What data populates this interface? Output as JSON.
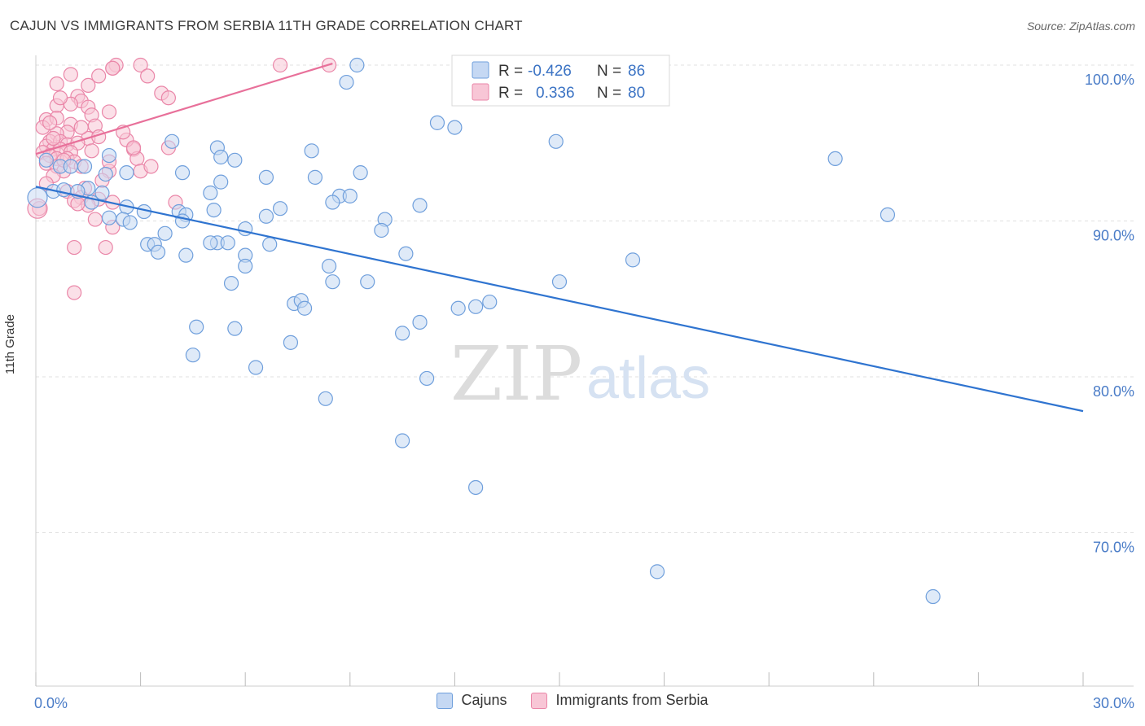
{
  "title": "CAJUN VS IMMIGRANTS FROM SERBIA 11TH GRADE CORRELATION CHART",
  "source": "Source: ZipAtlas.com",
  "watermark": {
    "zip": "ZIP",
    "atlas": "atlas"
  },
  "colors": {
    "blue_fill": "#c5d8f3",
    "blue_stroke": "#6f9fdc",
    "blue_line": "#2f74d0",
    "pink_fill": "#f8c6d6",
    "pink_stroke": "#ea86a8",
    "pink_line": "#e8709a",
    "grid": "#e0e0e0",
    "axis_label": "#4a7cc7"
  },
  "legend": {
    "rows": [
      {
        "r_label": "R = ",
        "r_value": "-0.426",
        "n_label": "N = ",
        "n_value": "86"
      },
      {
        "r_label": "R = ",
        "r_value": "0.336",
        "n_label": "N = ",
        "n_value": "80"
      }
    ]
  },
  "chart_data": {
    "type": "scatter",
    "title": "CAJUN VS IMMIGRANTS FROM SERBIA 11TH GRADE CORRELATION CHART",
    "xlabel": "",
    "ylabel": "11th Grade",
    "xlim": [
      0,
      30
    ],
    "ylim": [
      60,
      101.5
    ],
    "x_tick_labels": [
      {
        "value": 0,
        "label": "0.0%"
      },
      {
        "value": 30,
        "label": "30.0%"
      }
    ],
    "y_ticks": [
      {
        "value": 100,
        "label": "100.0%"
      },
      {
        "value": 90,
        "label": "90.0%"
      },
      {
        "value": 80,
        "label": "80.0%"
      },
      {
        "value": 70,
        "label": "70.0%"
      }
    ],
    "grid": "horizontal dashed",
    "legend_position": "top-center",
    "series": [
      {
        "name": "Cajuns",
        "color": "#6f9fdc",
        "r": -0.426,
        "n": 86,
        "trend": {
          "x": [
            0,
            30
          ],
          "y": [
            92.2,
            77.8
          ]
        },
        "points": [
          [
            9.2,
            100
          ],
          [
            8.9,
            98.9
          ],
          [
            11.5,
            96.3
          ],
          [
            12.0,
            96
          ],
          [
            14.9,
            95.1
          ],
          [
            3.9,
            95.1
          ],
          [
            7.9,
            94.5
          ],
          [
            5.2,
            94.7
          ],
          [
            2.1,
            94.2
          ],
          [
            22.9,
            94
          ],
          [
            5.3,
            94.1
          ],
          [
            5.7,
            93.9
          ],
          [
            1.4,
            93.5
          ],
          [
            0.7,
            93.5
          ],
          [
            2.0,
            93.0
          ],
          [
            4.2,
            93.1
          ],
          [
            9.3,
            93.1
          ],
          [
            8.0,
            92.8
          ],
          [
            6.6,
            92.8
          ],
          [
            2.6,
            93.1
          ],
          [
            5.3,
            92.5
          ],
          [
            1.5,
            92.1
          ],
          [
            0.5,
            91.9
          ],
          [
            1.2,
            91.9
          ],
          [
            5.0,
            91.8
          ],
          [
            8.7,
            91.6
          ],
          [
            9.0,
            91.6
          ],
          [
            8.5,
            91.2
          ],
          [
            1.6,
            91.2
          ],
          [
            2.6,
            90.9
          ],
          [
            11.0,
            91.0
          ],
          [
            3.1,
            90.6
          ],
          [
            4.1,
            90.6
          ],
          [
            4.3,
            90.4
          ],
          [
            5.1,
            90.7
          ],
          [
            6.6,
            90.3
          ],
          [
            2.1,
            90.2
          ],
          [
            10.0,
            90.1
          ],
          [
            24.4,
            90.4
          ],
          [
            4.2,
            90.0
          ],
          [
            9.9,
            89.4
          ],
          [
            2.5,
            90.1
          ],
          [
            2.7,
            89.9
          ],
          [
            6.0,
            89.5
          ],
          [
            5.2,
            88.6
          ],
          [
            5.5,
            88.6
          ],
          [
            5.0,
            88.6
          ],
          [
            3.2,
            88.5
          ],
          [
            3.4,
            88.5
          ],
          [
            6.7,
            88.5
          ],
          [
            10.6,
            87.9
          ],
          [
            4.3,
            87.8
          ],
          [
            6.0,
            87.8
          ],
          [
            3.5,
            88.0
          ],
          [
            17.1,
            87.5
          ],
          [
            6.0,
            87.1
          ],
          [
            8.4,
            87.1
          ],
          [
            5.6,
            86.0
          ],
          [
            8.5,
            86.1
          ],
          [
            9.5,
            86.1
          ],
          [
            15.0,
            86.1
          ],
          [
            7.4,
            84.7
          ],
          [
            7.6,
            84.9
          ],
          [
            7.7,
            84.4
          ],
          [
            12.1,
            84.4
          ],
          [
            12.6,
            84.5
          ],
          [
            13.0,
            84.8
          ],
          [
            11.0,
            83.5
          ],
          [
            4.6,
            83.2
          ],
          [
            5.7,
            83.1
          ],
          [
            10.5,
            82.8
          ],
          [
            7.3,
            82.2
          ],
          [
            4.5,
            81.4
          ],
          [
            6.3,
            80.6
          ],
          [
            11.2,
            79.9
          ],
          [
            8.3,
            78.6
          ],
          [
            10.5,
            75.9
          ],
          [
            12.6,
            72.9
          ],
          [
            17.8,
            67.5
          ],
          [
            25.7,
            65.9
          ],
          [
            1.0,
            93.5
          ],
          [
            0.3,
            93.9
          ],
          [
            0.8,
            92.0
          ],
          [
            1.9,
            91.8
          ],
          [
            3.7,
            89.2
          ],
          [
            7.0,
            90.8
          ]
        ]
      },
      {
        "name": "Immigrants from Serbia",
        "color": "#ea86a8",
        "r": 0.336,
        "n": 80,
        "trend": {
          "x": [
            0,
            8.5
          ],
          "y": [
            94.3,
            100.1
          ]
        },
        "points": [
          [
            7.0,
            100
          ],
          [
            8.4,
            100
          ],
          [
            2.3,
            100
          ],
          [
            2.2,
            99.8
          ],
          [
            3.0,
            100
          ],
          [
            2.2,
            99.8
          ],
          [
            1.0,
            99.4
          ],
          [
            1.8,
            99.3
          ],
          [
            3.2,
            99.3
          ],
          [
            0.6,
            98.8
          ],
          [
            1.5,
            98.7
          ],
          [
            1.2,
            98.0
          ],
          [
            3.6,
            98.2
          ],
          [
            3.8,
            97.9
          ],
          [
            1.3,
            97.7
          ],
          [
            1.0,
            97.5
          ],
          [
            1.5,
            97.3
          ],
          [
            0.6,
            97.4
          ],
          [
            2.1,
            97.0
          ],
          [
            1.6,
            96.8
          ],
          [
            0.3,
            96.5
          ],
          [
            0.6,
            96.6
          ],
          [
            1.0,
            96.2
          ],
          [
            0.2,
            96.0
          ],
          [
            1.7,
            96.1
          ],
          [
            0.9,
            95.7
          ],
          [
            1.5,
            95.3
          ],
          [
            0.6,
            95.6
          ],
          [
            1.8,
            95.4
          ],
          [
            0.4,
            95.1
          ],
          [
            0.7,
            95.1
          ],
          [
            0.9,
            94.9
          ],
          [
            1.2,
            95.0
          ],
          [
            0.3,
            94.8
          ],
          [
            0.5,
            94.6
          ],
          [
            0.7,
            94.6
          ],
          [
            1.0,
            94.4
          ],
          [
            0.2,
            94.4
          ],
          [
            0.4,
            94.2
          ],
          [
            0.6,
            94.0
          ],
          [
            0.9,
            94.0
          ],
          [
            1.1,
            93.8
          ],
          [
            0.3,
            93.7
          ],
          [
            0.6,
            93.5
          ],
          [
            1.3,
            93.5
          ],
          [
            0.8,
            93.2
          ],
          [
            0.5,
            92.9
          ],
          [
            2.8,
            94.6
          ],
          [
            2.9,
            94.0
          ],
          [
            3.0,
            93.2
          ],
          [
            2.1,
            93.2
          ],
          [
            1.9,
            92.6
          ],
          [
            0.3,
            92.4
          ],
          [
            1.4,
            92.1
          ],
          [
            0.9,
            91.9
          ],
          [
            1.3,
            91.5
          ],
          [
            1.1,
            91.3
          ],
          [
            1.8,
            91.4
          ],
          [
            2.2,
            91.2
          ],
          [
            4.0,
            91.2
          ],
          [
            1.5,
            91.0
          ],
          [
            1.2,
            91.1
          ],
          [
            0.1,
            90.8
          ],
          [
            1.7,
            90.1
          ],
          [
            2.2,
            89.6
          ],
          [
            1.1,
            88.3
          ],
          [
            2.0,
            88.3
          ],
          [
            1.1,
            85.4
          ],
          [
            2.6,
            95.2
          ],
          [
            2.8,
            94.7
          ],
          [
            1.6,
            94.5
          ],
          [
            2.1,
            93.8
          ],
          [
            0.8,
            93.9
          ],
          [
            0.4,
            96.3
          ],
          [
            2.5,
            95.7
          ],
          [
            1.3,
            96.0
          ],
          [
            0.7,
            97.9
          ],
          [
            3.3,
            93.5
          ],
          [
            3.8,
            94.7
          ],
          [
            0.5,
            95.3
          ]
        ]
      }
    ]
  },
  "bottom_legend": [
    {
      "label": "Cajuns",
      "color": "#c5d8f3",
      "border": "#6f9fdc"
    },
    {
      "label": "Immigrants from Serbia",
      "color": "#f8c6d6",
      "border": "#ea86a8"
    }
  ]
}
